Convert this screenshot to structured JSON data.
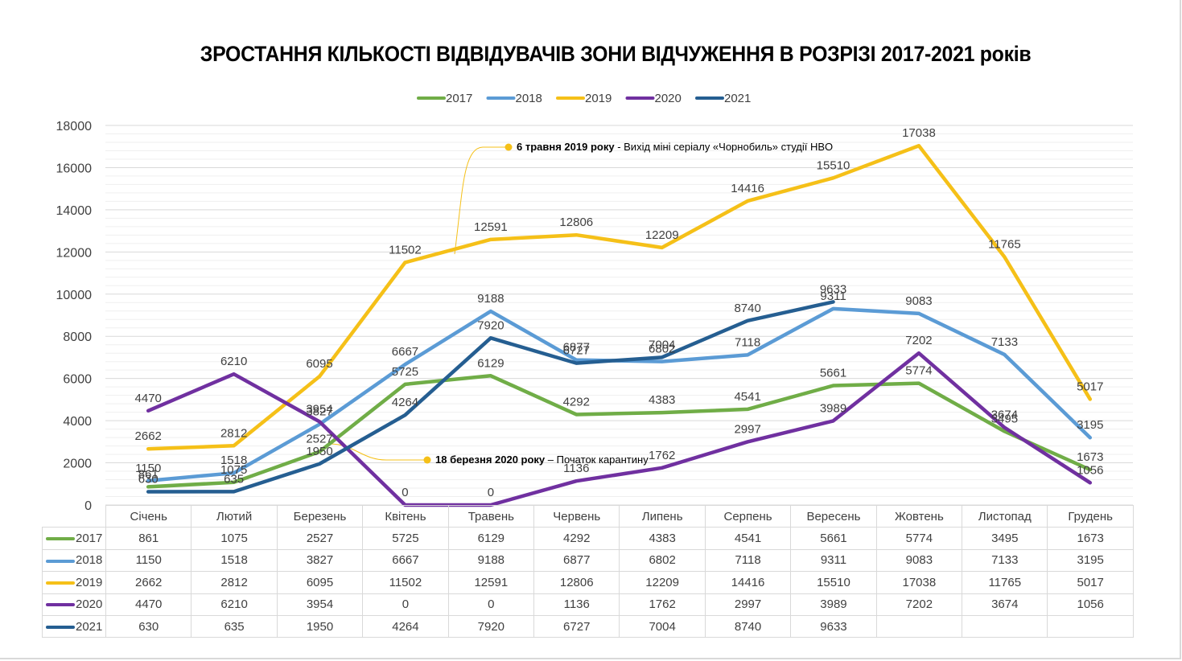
{
  "chart_data": {
    "type": "line",
    "title": "ЗРОСТАННЯ КІЛЬКОСТІ ВІДВІДУВАЧІВ ЗОНИ ВІДЧУЖЕННЯ В РОЗРІЗІ 2017-2021 років",
    "categories": [
      "Січень",
      "Лютий",
      "Березень",
      "Квітень",
      "Травень",
      "Червень",
      "Липень",
      "Серпень",
      "Вересень",
      "Жовтень",
      "Листопад",
      "Грудень"
    ],
    "series": [
      {
        "name": "2017",
        "color": "#70ad47",
        "values": [
          861,
          1075,
          2527,
          5725,
          6129,
          4292,
          4383,
          4541,
          5661,
          5774,
          3495,
          1673
        ]
      },
      {
        "name": "2018",
        "color": "#5b9bd5",
        "values": [
          1150,
          1518,
          3827,
          6667,
          9188,
          6877,
          6802,
          7118,
          9311,
          9083,
          7133,
          3195
        ]
      },
      {
        "name": "2019",
        "color": "#f5c018",
        "values": [
          2662,
          2812,
          6095,
          11502,
          12591,
          12806,
          12209,
          14416,
          15510,
          17038,
          11765,
          5017
        ]
      },
      {
        "name": "2020",
        "color": "#7030a0",
        "values": [
          4470,
          6210,
          3954,
          0,
          0,
          1136,
          1762,
          2997,
          3989,
          7202,
          3674,
          1056
        ]
      },
      {
        "name": "2021",
        "color": "#255e91",
        "values": [
          630,
          635,
          1950,
          4264,
          7920,
          6727,
          7004,
          8740,
          9633,
          null,
          null,
          null
        ]
      }
    ],
    "ylim": [
      0,
      18000
    ],
    "yticks": [
      0,
      2000,
      4000,
      6000,
      8000,
      10000,
      12000,
      14000,
      16000,
      18000
    ],
    "grid": true,
    "legend": "top",
    "annotations": [
      {
        "bold": "6 травня 2019 року",
        "text": " - Вихід міні серіалу «Чорнобиль» студії HBO"
      },
      {
        "bold": "18 березня 2020 року",
        "text": " – Початок карантину"
      }
    ]
  }
}
